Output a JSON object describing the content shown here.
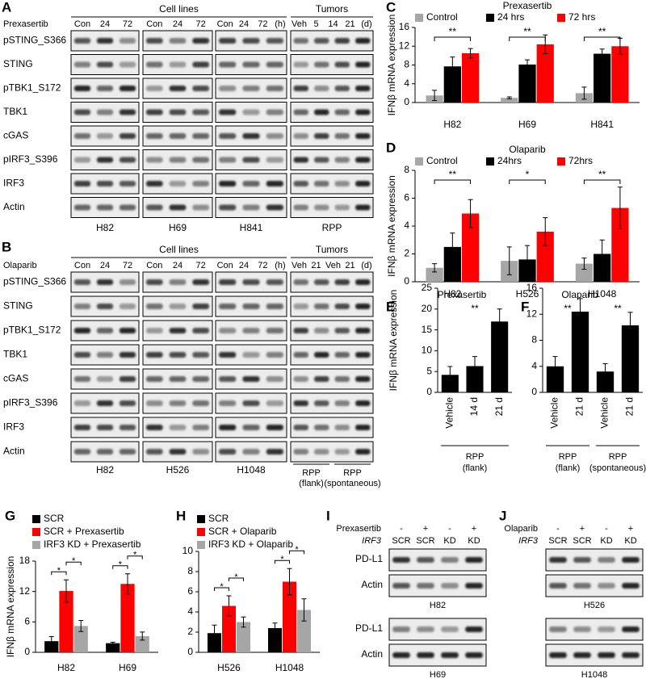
{
  "panels": {
    "A": {
      "label": "A",
      "treatment": "Prexasertib",
      "headers": [
        "Cell lines",
        "Tumors"
      ],
      "rows": [
        "pSTING_S366",
        "STING",
        "pTBK1_S172",
        "TBK1",
        "cGAS",
        "pIRF3_S396",
        "IRF3",
        "Actin"
      ],
      "groups": [
        {
          "name": "H82",
          "lanes": [
            "Con",
            "24",
            "72"
          ]
        },
        {
          "name": "H69",
          "lanes": [
            "Con",
            "24",
            "72"
          ]
        },
        {
          "name": "H841",
          "lanes": [
            "Con",
            "24",
            "72"
          ],
          "unit": "(h)"
        },
        {
          "name": "RPP",
          "lanes": [
            "Veh",
            "5",
            "14",
            "21"
          ],
          "unit": "(d)"
        }
      ]
    },
    "B": {
      "label": "B",
      "treatment": "Olaparib",
      "headers": [
        "Cell lines",
        "Tumors"
      ],
      "rows": [
        "pSTING_S366",
        "STING",
        "pTBK1_S172",
        "TBK1",
        "cGAS",
        "pIRF3_S396",
        "IRF3",
        "Actin"
      ],
      "groups": [
        {
          "name": "H82",
          "lanes": [
            "Con",
            "24",
            "72"
          ]
        },
        {
          "name": "H526",
          "lanes": [
            "Con",
            "24",
            "72"
          ]
        },
        {
          "name": "H1048",
          "lanes": [
            "Con",
            "24",
            "72"
          ],
          "unit": "(h)"
        },
        {
          "names": [
            [
              "RPP",
              "(flank)"
            ],
            [
              "RPP",
              "(spontaneous)"
            ]
          ],
          "lanes": [
            "Veh",
            "21",
            "Veh",
            "21"
          ],
          "unit": "(d)"
        }
      ]
    },
    "I": {
      "label": "I",
      "treatment": "Prexasertib",
      "signs": [
        "-",
        "+",
        "-",
        "+"
      ],
      "genotype": "IRF3",
      "lanes": [
        "SCR",
        "SCR",
        "KD",
        "KD"
      ],
      "rows": [
        "PD-L1",
        "Actin"
      ],
      "cells": [
        "H82",
        "H69"
      ]
    },
    "J": {
      "label": "J",
      "treatment": "Olaparib",
      "signs": [
        "-",
        "+",
        "-",
        "+"
      ],
      "genotype": "IRF3",
      "lanes": [
        "SCR",
        "SCR",
        "KD",
        "KD"
      ],
      "cells": [
        "H526",
        "H1048"
      ]
    }
  },
  "chart_data": [
    {
      "type": "bar",
      "panel": "C",
      "title": "Prexasertib",
      "y_label": "IFNβ mRNA expression",
      "categories": [
        "H82",
        "H69",
        "H841"
      ],
      "series": [
        {
          "name": "Control",
          "color": "#a6a6a6",
          "values": [
            1.5,
            1.0,
            2.0
          ],
          "errors": [
            1.1,
            0.2,
            1.3
          ]
        },
        {
          "name": "24 hrs",
          "color": "#000000",
          "values": [
            7.7,
            8.1,
            10.4
          ],
          "errors": [
            2.0,
            1.0,
            1.0
          ]
        },
        {
          "name": "72 hrs",
          "color": "#ff0000",
          "values": [
            10.5,
            12.4,
            12.0
          ],
          "errors": [
            1.0,
            2.0,
            1.7
          ]
        }
      ],
      "ylim": [
        0,
        16
      ],
      "yticks": [
        0,
        4,
        8,
        12,
        16
      ],
      "significance": [
        "**",
        "**",
        "**"
      ]
    },
    {
      "type": "bar",
      "panel": "D",
      "title": "Olaparib",
      "y_label": "IFNβ mRNA expression",
      "categories": [
        "H82",
        "H526",
        "H1048"
      ],
      "series": [
        {
          "name": "Control",
          "color": "#a6a6a6",
          "values": [
            1.0,
            1.5,
            1.3
          ],
          "errors": [
            0.3,
            1.0,
            0.4
          ]
        },
        {
          "name": "24hrs",
          "color": "#000000",
          "values": [
            2.5,
            1.6,
            2.0
          ],
          "errors": [
            1.0,
            1.0,
            1.0
          ]
        },
        {
          "name": "72hrs",
          "color": "#ff0000",
          "values": [
            4.9,
            3.6,
            5.3
          ],
          "errors": [
            1.0,
            1.0,
            1.5
          ]
        }
      ],
      "ylim": [
        0,
        8
      ],
      "yticks": [
        0,
        2,
        4,
        6,
        8
      ],
      "significance": [
        "**",
        "*",
        "**"
      ]
    },
    {
      "type": "bar",
      "panel": "E",
      "title": "Prexasertib",
      "y_label": "IFNβ mRNA expression",
      "categories": [
        "Vehicle",
        "14 d",
        "21 d"
      ],
      "series": [
        {
          "color": "#000000",
          "values": [
            4.2,
            6.3,
            17.0
          ],
          "errors": [
            2.0,
            2.3,
            3.0
          ]
        }
      ],
      "ylim": [
        0,
        25
      ],
      "yticks": [
        0,
        5,
        10,
        15,
        20,
        25
      ],
      "significance": [
        "**"
      ],
      "group_labels": [
        [
          "RPP",
          "(flank)"
        ]
      ]
    },
    {
      "type": "bar",
      "panel": "F",
      "title": "Olaparib",
      "categories": [
        "Vehicle",
        "21 d",
        "Vehicle",
        "21 d"
      ],
      "series": [
        {
          "color": "#000000",
          "values": [
            4.0,
            12.4,
            3.2,
            10.3
          ],
          "errors": [
            1.5,
            2.0,
            1.2,
            2.0
          ]
        }
      ],
      "ylim": [
        0,
        16
      ],
      "yticks": [
        0,
        4,
        8,
        12,
        16
      ],
      "significance": [
        "**",
        "**"
      ],
      "group_labels": [
        [
          "RPP",
          "(flank)"
        ],
        [
          "RPP",
          "(spontaneous)"
        ]
      ]
    },
    {
      "type": "bar",
      "panel": "G",
      "y_label": "IFNβ mRNA expression",
      "categories": [
        "H82",
        "H69"
      ],
      "series": [
        {
          "name": "SCR",
          "color": "#000000",
          "values": [
            2.2,
            1.8
          ],
          "errors": [
            0.9,
            0.2
          ]
        },
        {
          "name": "SCR + Prexasertib",
          "color": "#ff0000",
          "values": [
            12.1,
            13.5
          ],
          "errors": [
            2.2,
            2.0
          ]
        },
        {
          "name": "IRF3 KD + Prexasertib",
          "color": "#a6a6a6",
          "values": [
            5.2,
            3.2
          ],
          "errors": [
            1.1,
            0.8
          ]
        }
      ],
      "ylim": [
        0,
        18
      ],
      "yticks": [
        0,
        6,
        12,
        18
      ],
      "significance": [
        [
          "*",
          "*"
        ],
        [
          "*",
          "*"
        ]
      ]
    },
    {
      "type": "bar",
      "panel": "H",
      "categories": [
        "H526",
        "H1048"
      ],
      "series": [
        {
          "name": "SCR",
          "color": "#000000",
          "values": [
            1.9,
            2.4
          ],
          "errors": [
            0.8,
            0.5
          ]
        },
        {
          "name": "SCR + Olaparib",
          "color": "#ff0000",
          "values": [
            4.6,
            7.0
          ],
          "errors": [
            1.0,
            1.3
          ]
        },
        {
          "name": "IRF3 KD + Olaparib",
          "color": "#a6a6a6",
          "values": [
            3.0,
            4.2
          ],
          "errors": [
            0.5,
            1.1
          ]
        }
      ],
      "ylim": [
        0,
        10
      ],
      "yticks": [
        0,
        2,
        4,
        6,
        8,
        10
      ],
      "significance": [
        [
          "*",
          "*"
        ],
        [
          "*",
          "*"
        ]
      ]
    }
  ]
}
